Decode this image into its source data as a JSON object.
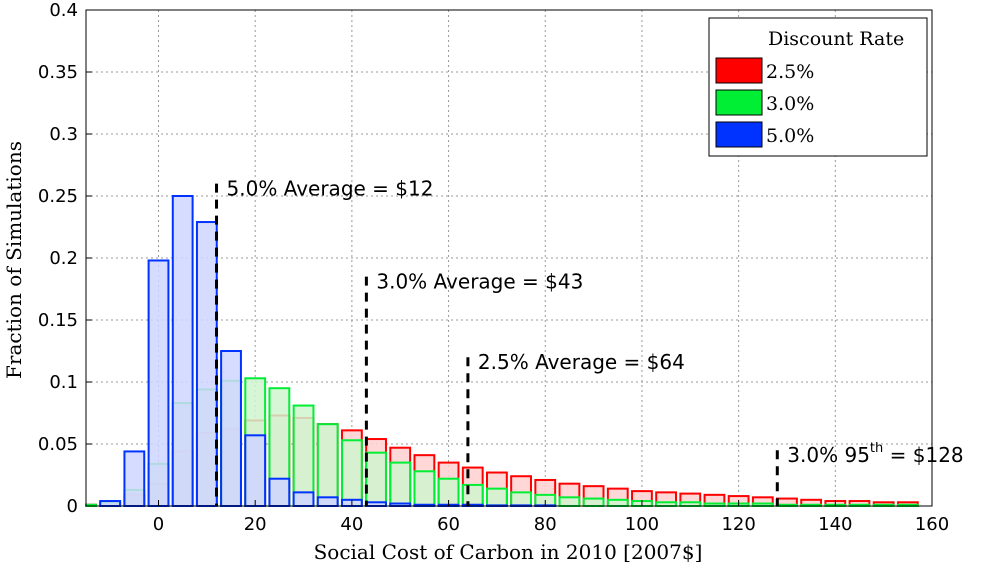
{
  "chart_data": {
    "type": "bar",
    "xlabel": "Social Cost of Carbon in 2010 [2007$]",
    "ylabel": "Fraction of Simulations",
    "xlim": [
      -15,
      160
    ],
    "ylim": [
      0,
      0.4
    ],
    "xticks": [
      0,
      20,
      40,
      60,
      80,
      100,
      120,
      140,
      160
    ],
    "yticks": [
      0,
      0.05,
      0.1,
      0.15,
      0.2,
      0.25,
      0.3,
      0.35,
      0.4
    ],
    "xtick_labels": [
      "0",
      "20",
      "40",
      "60",
      "80",
      "100",
      "120",
      "140",
      "160"
    ],
    "ytick_labels": [
      "0",
      "0.05",
      "0.1",
      "0.15",
      "0.2",
      "0.25",
      "0.3",
      "0.35",
      "0.4"
    ],
    "grid": true,
    "bin_width": 5,
    "bin_centers": [
      -15,
      -10,
      -5,
      0,
      5,
      10,
      15,
      20,
      25,
      30,
      35,
      40,
      45,
      50,
      55,
      60,
      65,
      70,
      75,
      80,
      85,
      90,
      95,
      100,
      105,
      110,
      115,
      120,
      125,
      130,
      135,
      140,
      145,
      150,
      155
    ],
    "legend": {
      "title": "Discount Rate",
      "position": "top-right"
    },
    "series": [
      {
        "name": "2.5%",
        "color": "#ff0000",
        "fill": "#ffd0d0",
        "values": [
          0.001,
          0.003,
          0.009,
          0.018,
          0.044,
          0.059,
          0.062,
          0.069,
          0.073,
          0.071,
          0.066,
          0.061,
          0.054,
          0.047,
          0.041,
          0.035,
          0.031,
          0.027,
          0.024,
          0.021,
          0.018,
          0.016,
          0.014,
          0.012,
          0.011,
          0.01,
          0.009,
          0.008,
          0.007,
          0.006,
          0.005,
          0.004,
          0.004,
          0.003,
          0.003
        ]
      },
      {
        "name": "3.0%",
        "color": "#00ee33",
        "fill": "#cff5cf",
        "values": [
          0.001,
          0.003,
          0.013,
          0.034,
          0.083,
          0.094,
          0.101,
          0.103,
          0.095,
          0.081,
          0.066,
          0.053,
          0.043,
          0.035,
          0.028,
          0.022,
          0.017,
          0.014,
          0.011,
          0.009,
          0.007,
          0.006,
          0.005,
          0.004,
          0.003,
          0.003,
          0.002,
          0.002,
          0.002,
          0.001,
          0.001,
          0.001,
          0.001,
          0.001,
          0.001
        ]
      },
      {
        "name": "5.0%",
        "color": "#0033ff",
        "fill": "#cfd6ff",
        "values": [
          0.0,
          0.004,
          0.044,
          0.198,
          0.25,
          0.229,
          0.125,
          0.057,
          0.022,
          0.011,
          0.007,
          0.005,
          0.003,
          0.002,
          0.001,
          0.001,
          0.001,
          0.0005,
          0.0005,
          0.0005,
          0.0,
          0.0,
          0.0,
          0.0,
          0.0,
          0.0,
          0.0,
          0.0,
          0.0,
          0.0,
          0.0,
          0.0,
          0.0,
          0.0,
          0.0
        ]
      }
    ],
    "annotations": [
      {
        "id": "avg-5",
        "x": 12,
        "y_top": 0.26,
        "label": "5.0% Average = $12"
      },
      {
        "id": "avg-3",
        "x": 43,
        "y_top": 0.185,
        "label": "3.0% Average = $43"
      },
      {
        "id": "avg-25",
        "x": 64,
        "y_top": 0.12,
        "label": "2.5% Average = $64"
      },
      {
        "id": "p95-3",
        "x": 128,
        "y_top": 0.045,
        "label_prefix": "3.0% 95",
        "label_sup": "th",
        "label_suffix": " = $128"
      }
    ]
  }
}
